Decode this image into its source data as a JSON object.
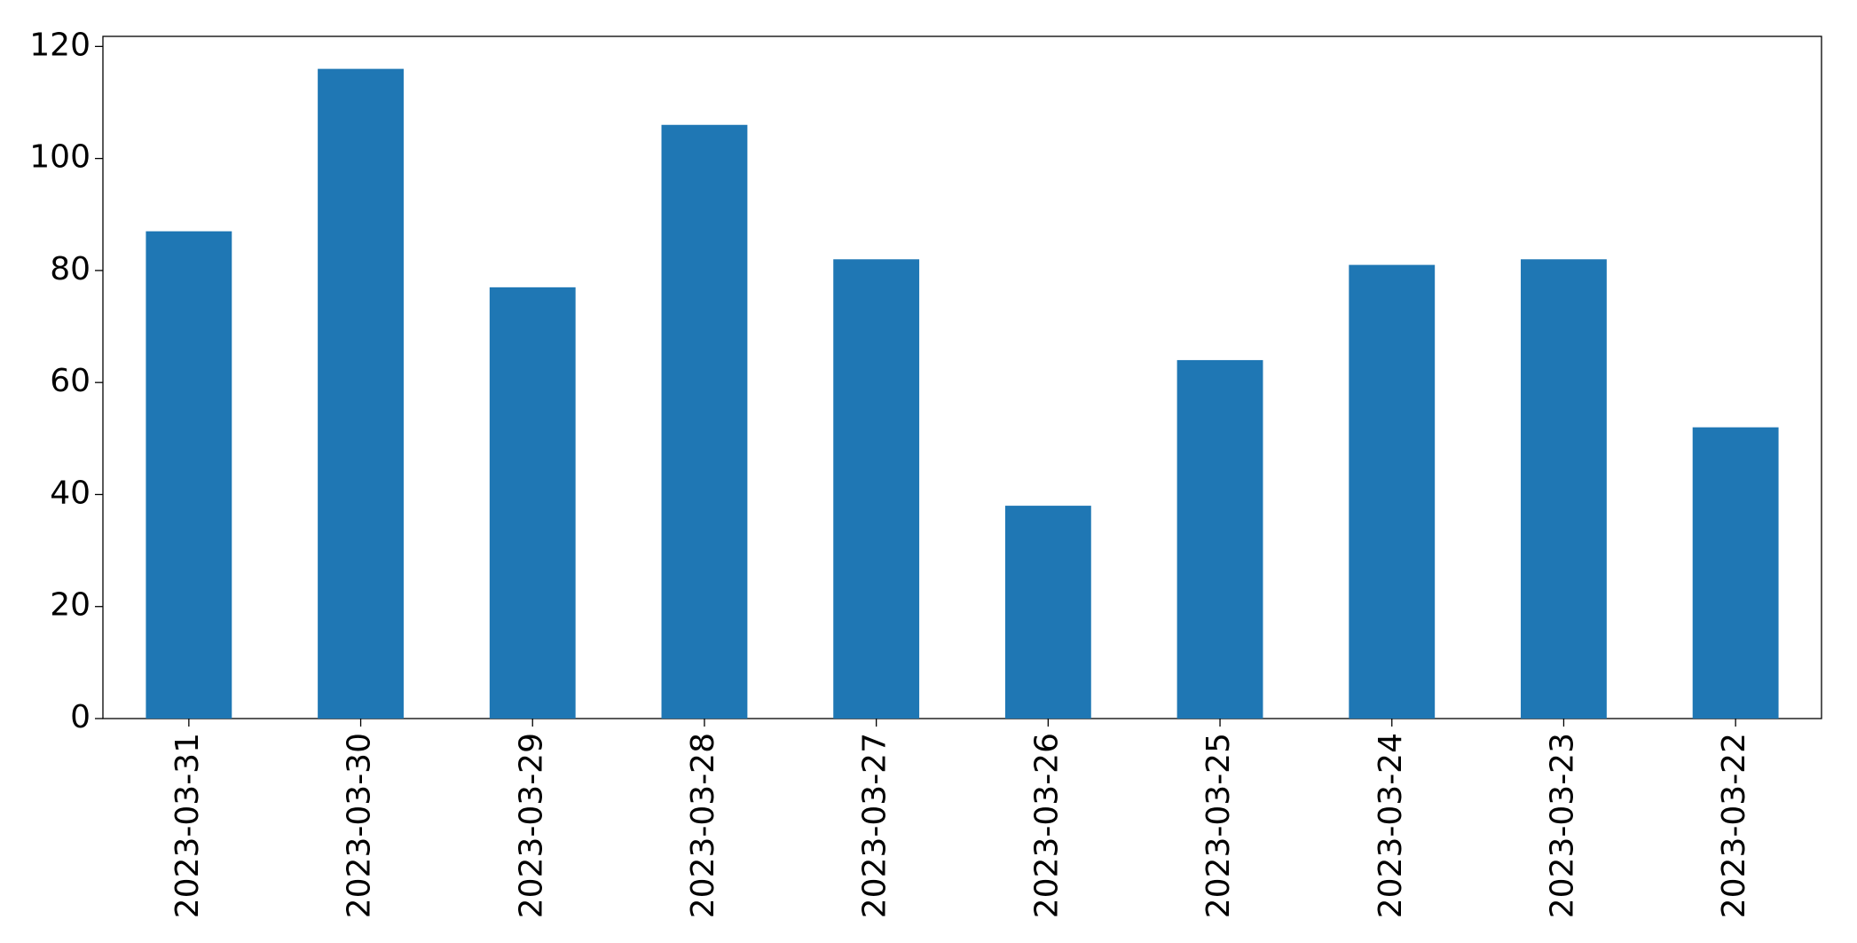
{
  "chart_data": {
    "type": "bar",
    "categories": [
      "2023-03-31",
      "2023-03-30",
      "2023-03-29",
      "2023-03-28",
      "2023-03-27",
      "2023-03-26",
      "2023-03-25",
      "2023-03-24",
      "2023-03-23",
      "2023-03-22"
    ],
    "values": [
      87,
      116,
      77,
      106,
      82,
      38,
      64,
      81,
      82,
      52
    ],
    "color": "#1f77b4",
    "ylim": [
      0,
      121.8
    ],
    "yticks": [
      0,
      20,
      40,
      60,
      80,
      100,
      120
    ],
    "grid": false
  }
}
